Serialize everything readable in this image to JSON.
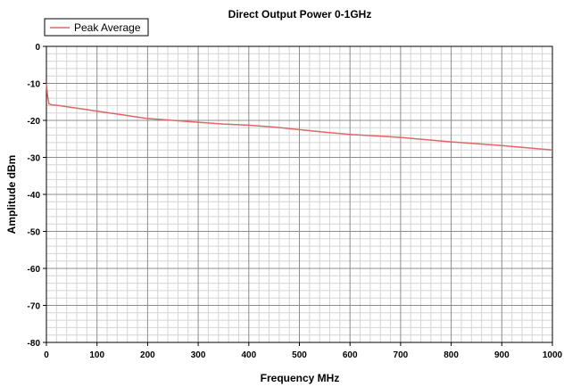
{
  "chart_data": {
    "type": "line",
    "title": "Direct Output Power 0-1GHz",
    "xlabel": "Frequency MHz",
    "ylabel": "Amplitude dBm",
    "xlim": [
      0,
      1000
    ],
    "ylim": [
      -80,
      0
    ],
    "x_ticks": [
      "0",
      "100",
      "200",
      "300",
      "400",
      "500",
      "600",
      "700",
      "800",
      "900",
      "1000"
    ],
    "y_ticks": [
      "0",
      "-10",
      "-20",
      "-30",
      "-40",
      "-50",
      "-60",
      "-70",
      "-80"
    ],
    "grid": true,
    "legend_position": "top-left",
    "series": [
      {
        "name": "Peak Average",
        "color": "#e06666",
        "x": [
          0,
          2,
          5,
          10,
          25,
          50,
          75,
          100,
          125,
          150,
          175,
          200,
          250,
          300,
          350,
          400,
          450,
          500,
          550,
          600,
          650,
          700,
          750,
          800,
          850,
          900,
          950,
          1000
        ],
        "y": [
          -10,
          -13,
          -15.5,
          -15.8,
          -16,
          -16.5,
          -17,
          -17.5,
          -18,
          -18.5,
          -19,
          -19.5,
          -20,
          -20.5,
          -21,
          -21.3,
          -21.8,
          -22.5,
          -23.2,
          -23.8,
          -24.2,
          -24.6,
          -25.2,
          -25.8,
          -26.3,
          -26.8,
          -27.4,
          -28
        ]
      }
    ]
  }
}
